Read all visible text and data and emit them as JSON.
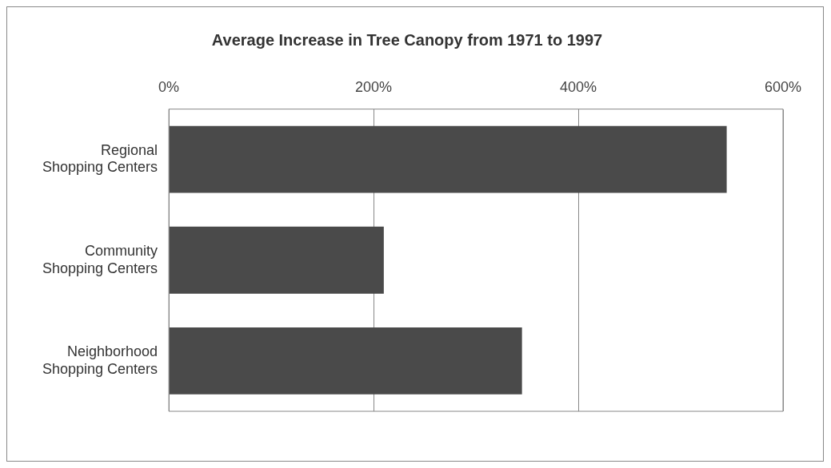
{
  "chart_data": {
    "type": "bar",
    "orientation": "horizontal",
    "title": "Average Increase in Tree Canopy from 1971 to 1997",
    "categories": [
      "Regional Shopping Centers",
      "Community Shopping Centers",
      "Neighborhood Shopping Centers"
    ],
    "values": [
      545,
      210,
      345
    ],
    "color": "#4a4a4a",
    "xlim": [
      0,
      600
    ],
    "xticks": [
      {
        "value": 0,
        "label": "0%"
      },
      {
        "value": 200,
        "label": "200%"
      },
      {
        "value": 400,
        "label": "400%"
      },
      {
        "value": 600,
        "label": "600%"
      }
    ],
    "grid": "x"
  }
}
